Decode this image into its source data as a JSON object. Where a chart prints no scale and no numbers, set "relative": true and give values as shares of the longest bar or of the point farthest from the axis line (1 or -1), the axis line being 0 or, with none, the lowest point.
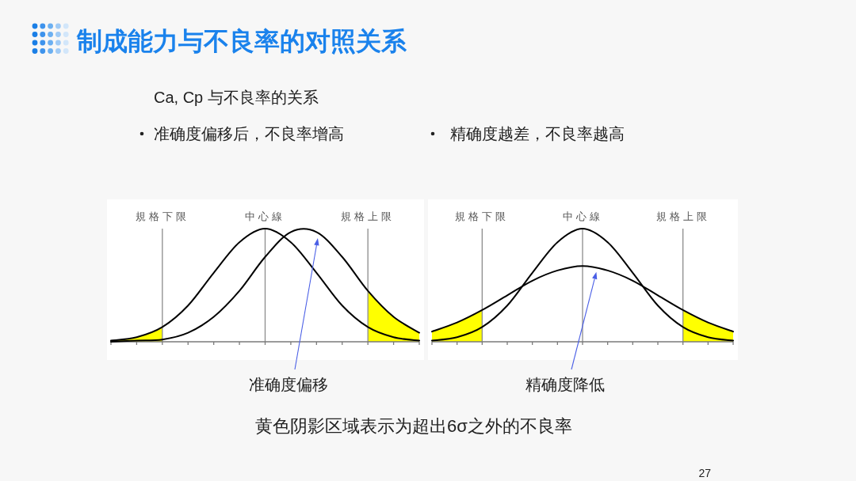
{
  "chart_data": [
    {
      "type": "other",
      "title": "制成能力与不良率的对照关系",
      "subtitle": "Ca, Cp 与不良率的关系",
      "annotations": [
        "黄色阴影区域表示为超出6σ之外的不良率",
        "27"
      ]
    },
    {
      "type": "line",
      "title": "准确度偏移后，不良率增高",
      "relative": true,
      "categories": [
        null,
        null,
        "規格下限",
        null,
        null,
        null,
        "中心線",
        null,
        null,
        null,
        "規格上限",
        null,
        null
      ],
      "series": [
        {
          "type": "area",
          "color": "#ffff00",
          "values": [
            0.01,
            0.04,
            0.13,
            null,
            null,
            null,
            null,
            null,
            null,
            null,
            null,
            null,
            null
          ]
        },
        {
          "type": "area",
          "color": "#ffff00",
          "values": [
            null,
            null,
            null,
            null,
            null,
            null,
            null,
            null,
            null,
            null,
            0.45,
            0.22,
            0.08
          ]
        },
        {
          "color": "#000000",
          "values": [
            0.01,
            0.04,
            0.13,
            0.32,
            0.61,
            0.88,
            1,
            0.88,
            0.61,
            0.32,
            0.13,
            0.04,
            0.01
          ]
        },
        {
          "color": "#000000",
          "values": [
            0,
            0.01,
            0.02,
            0.08,
            0.22,
            0.45,
            0.75,
            0.97,
            0.97,
            0.75,
            0.45,
            0.22,
            0.08
          ]
        }
      ],
      "ref_lines": [
        {
          "axis": "x",
          "value": "規格下限",
          "color": "#8c8c8c"
        },
        {
          "axis": "x",
          "value": "中心線",
          "color": "#8c8c8c"
        },
        {
          "axis": "x",
          "value": "規格上限",
          "color": "#8c8c8c"
        }
      ],
      "annotations": [
        "准确度偏移"
      ]
    },
    {
      "type": "line",
      "title": "精确度越差，不良率越高",
      "relative": true,
      "categories": [
        null,
        null,
        "規格下限",
        null,
        null,
        null,
        "中心線",
        null,
        null,
        null,
        "規格上限",
        null,
        null
      ],
      "series": [
        {
          "type": "area",
          "color": "#ffff00",
          "values": [
            0.09,
            0.17,
            0.28,
            null,
            null,
            null,
            null,
            null,
            null,
            null,
            null,
            null,
            null
          ]
        },
        {
          "type": "area",
          "color": "#ffff00",
          "values": [
            null,
            null,
            null,
            null,
            null,
            null,
            null,
            null,
            null,
            null,
            0.28,
            0.17,
            0.09
          ]
        },
        {
          "color": "#000000",
          "values": [
            0.01,
            0.04,
            0.13,
            0.32,
            0.61,
            0.88,
            1,
            0.88,
            0.61,
            0.32,
            0.13,
            0.04,
            0.01
          ]
        },
        {
          "color": "#000000",
          "values": [
            0.09,
            0.17,
            0.28,
            0.41,
            0.54,
            0.63,
            0.67,
            0.63,
            0.54,
            0.41,
            0.28,
            0.17,
            0.09
          ]
        }
      ],
      "ref_lines": [
        {
          "axis": "x",
          "value": "規格下限",
          "color": "#8c8c8c"
        },
        {
          "axis": "x",
          "value": "中心線",
          "color": "#8c8c8c"
        },
        {
          "axis": "x",
          "value": "規格上限",
          "color": "#8c8c8c"
        }
      ],
      "annotations": [
        "精确度降低"
      ]
    }
  ]
}
